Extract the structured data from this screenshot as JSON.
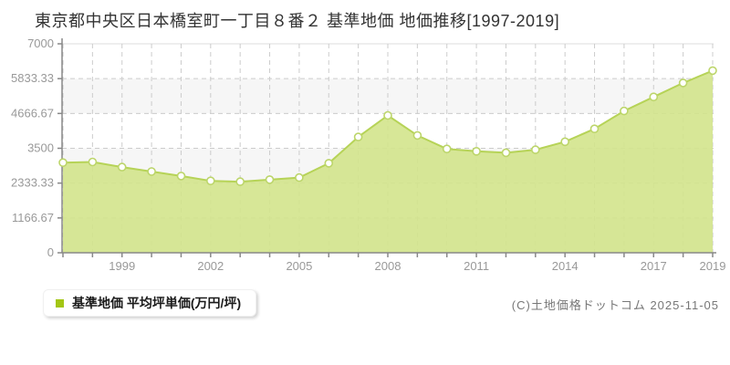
{
  "title": "東京都中央区日本橋室町一丁目８番２ 基準地価 地価推移[1997-2019]",
  "legend": {
    "label": "基準地価 平均坪単価(万円/坪)",
    "marker_color": "#a3c614"
  },
  "copyright": "(C)土地価格ドットコム 2025-11-05",
  "chart_data": {
    "type": "area",
    "title": "東京都中央区日本橋室町一丁目８番２ 基準地価 地価推移[1997-2019]",
    "xlabel": "",
    "ylabel": "平均坪単価(万円/坪)",
    "x": [
      1997,
      1998,
      1999,
      2000,
      2001,
      2002,
      2003,
      2004,
      2005,
      2006,
      2007,
      2008,
      2009,
      2010,
      2011,
      2012,
      2013,
      2014,
      2015,
      2016,
      2017,
      2018,
      2019
    ],
    "series": [
      {
        "name": "基準地価 平均坪単価(万円/坪)",
        "values": [
          3020,
          3040,
          2870,
          2720,
          2570,
          2410,
          2380,
          2450,
          2520,
          3000,
          3880,
          4600,
          3930,
          3480,
          3400,
          3350,
          3450,
          3720,
          4150,
          4750,
          5220,
          5690,
          6100
        ]
      }
    ],
    "ylim": [
      0,
      7000
    ],
    "yticks": [
      0,
      1166.67,
      2333.33,
      3500,
      4666.67,
      5833.33,
      7000
    ],
    "ytick_labels": [
      "0",
      "1166.67",
      "2333.33",
      "3500",
      "4666.67",
      "5833.33",
      "7000"
    ],
    "xtick_label_years": [
      1999,
      2002,
      2005,
      2008,
      2011,
      2014,
      2017,
      2019
    ],
    "grid": true,
    "legend_position": "bottom-left",
    "colors": {
      "line": "#b6d357",
      "fill": "#d3e48c",
      "marker_fill": "#ffffff",
      "marker_stroke": "#bcd56a",
      "grid": "#cccccc",
      "axis": "#888888",
      "band_alt": "#f6f6f6",
      "band_main": "#ffffff",
      "tick_label": "#999999",
      "plot_top_border": "#dddddd"
    }
  }
}
